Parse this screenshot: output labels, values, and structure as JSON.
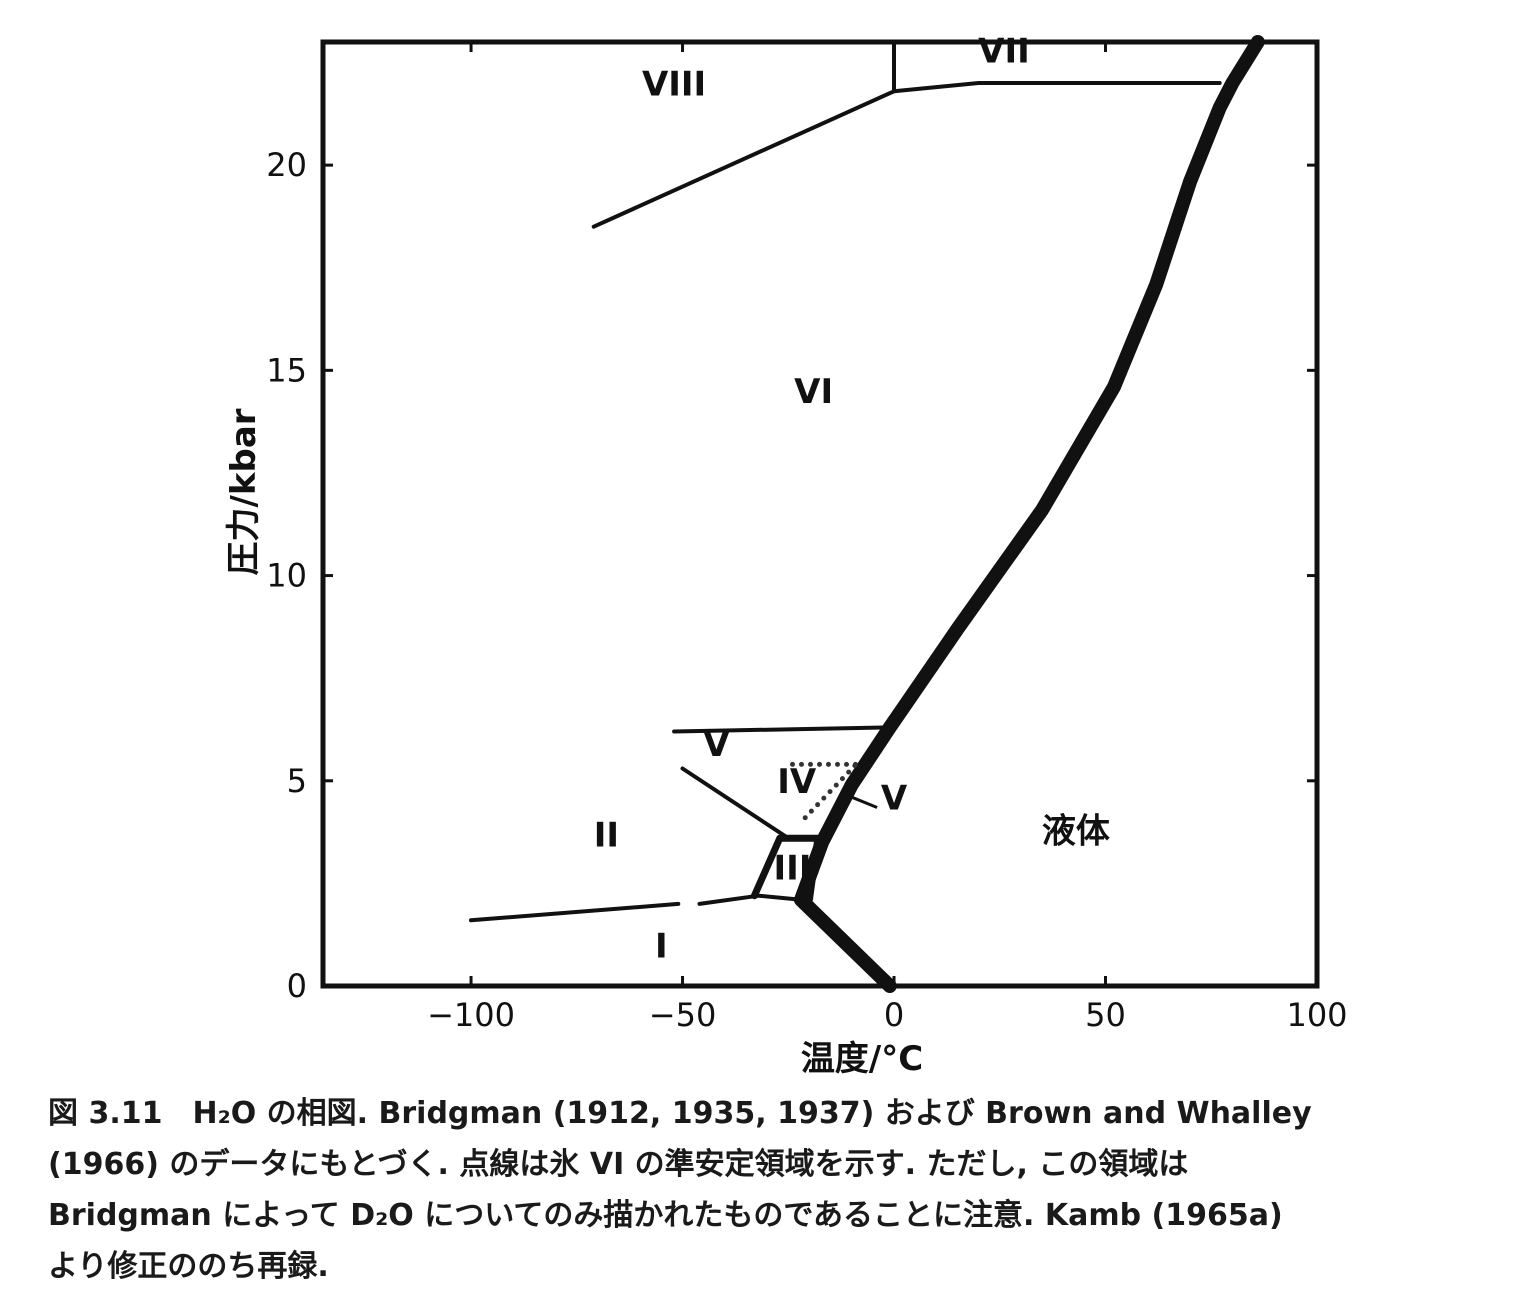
{
  "chart_data": {
    "type": "line",
    "title": "",
    "xlabel": "温度/°C",
    "ylabel": "圧力/kbar",
    "xlim": [
      -135,
      100
    ],
    "ylim": [
      0,
      23
    ],
    "xticks": [
      -100,
      -50,
      0,
      50,
      100
    ],
    "yticks": [
      0,
      5,
      10,
      15,
      20
    ],
    "xtick_labels": [
      "−100",
      "−50",
      "0",
      "50",
      "100"
    ],
    "ytick_labels": [
      "0",
      "5",
      "10",
      "15",
      "20"
    ],
    "grid": false,
    "series": [
      {
        "kind": "melting",
        "width": "thick",
        "x": [
          -1,
          -22,
          -17,
          -10,
          -1,
          15,
          35,
          52,
          62,
          70,
          77,
          80,
          86
        ],
        "y": [
          0,
          2.1,
          3.5,
          4.9,
          6.3,
          8.7,
          11.6,
          14.6,
          17.1,
          19.6,
          21.4,
          22.0,
          23.0
        ]
      },
      {
        "kind": "boundary",
        "width": "thin",
        "x": [
          -100,
          -51
        ],
        "y": [
          1.6,
          2.0
        ]
      },
      {
        "kind": "boundary",
        "width": "thin",
        "x": [
          -46,
          -32,
          -22
        ],
        "y": [
          2.0,
          2.2,
          2.1
        ]
      },
      {
        "kind": "boundary",
        "width": "thin",
        "x": [
          -50,
          -25
        ],
        "y": [
          5.3,
          3.6
        ]
      },
      {
        "kind": "boundary",
        "width": "thin",
        "x": [
          -52,
          -1
        ],
        "y": [
          6.2,
          6.3
        ]
      },
      {
        "kind": "boundary",
        "width": "medium",
        "x": [
          -33,
          -27,
          -18,
          -20
        ],
        "y": [
          2.2,
          3.6,
          3.6,
          2.1
        ]
      },
      {
        "kind": "boundary",
        "width": "thin",
        "x": [
          -71,
          0,
          20,
          77
        ],
        "y": [
          18.5,
          21.8,
          22.0,
          22.0
        ]
      },
      {
        "kind": "boundary",
        "width": "thin",
        "x": [
          0,
          0
        ],
        "y": [
          21.8,
          23.0
        ]
      },
      {
        "kind": "metastable",
        "style": "dotted",
        "x": [
          -21,
          -9
        ],
        "y": [
          4.1,
          5.4
        ]
      },
      {
        "kind": "metastable",
        "style": "dotted",
        "x": [
          -24,
          -9
        ],
        "y": [
          5.4,
          5.4
        ]
      }
    ],
    "annotations": [
      {
        "text": "VIII",
        "x": -52,
        "y": 21.7
      },
      {
        "text": "VII",
        "x": 26,
        "y": 22.5
      },
      {
        "text": "VI",
        "x": -19,
        "y": 14.2
      },
      {
        "text": "V",
        "x": -42,
        "y": 5.6
      },
      {
        "text": "IV",
        "x": -23,
        "y": 4.7
      },
      {
        "text": "V",
        "x": 0,
        "y": 4.3
      },
      {
        "text": "II",
        "x": -68,
        "y": 3.4
      },
      {
        "text": "III",
        "x": -24,
        "y": 2.6
      },
      {
        "text": "I",
        "x": -55,
        "y": 0.7
      },
      {
        "text": "液体",
        "x": 43,
        "y": 3.5
      }
    ]
  },
  "caption": {
    "lines": [
      "図 3.11　H₂O の相図. Bridgman (1912, 1935, 1937) および Brown and Whalley",
      "(1966) のデータにもとづく. 点線は氷 VI の準安定領域を示す. ただし, この領域は",
      "Bridgman によって D₂O についてのみ描かれたものであることに注意. Kamb (1965a)",
      "より修正ののち再録."
    ]
  }
}
